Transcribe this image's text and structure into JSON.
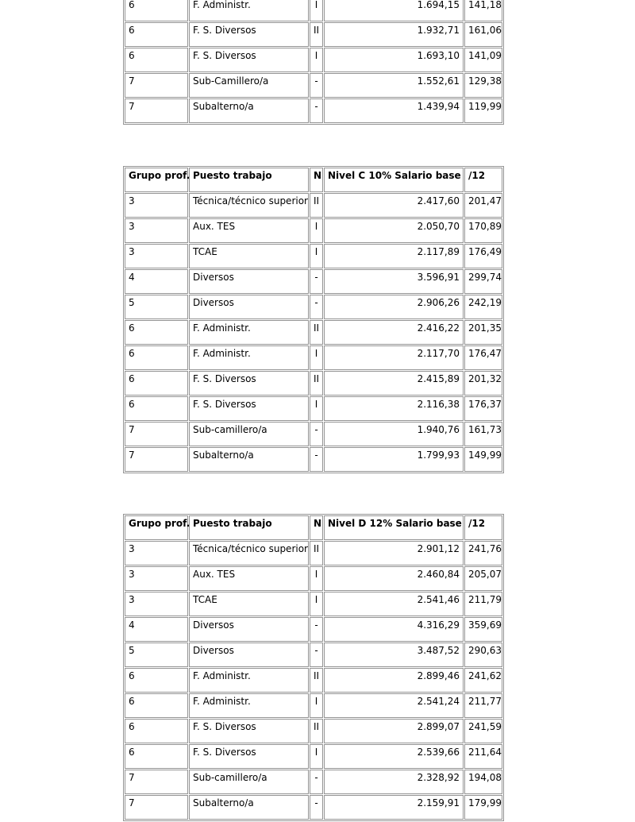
{
  "page": {
    "background_color": "#ffffff",
    "border_color": "#949494",
    "text_color": "#000000"
  },
  "tables": [
    {
      "id": "partial-top-table",
      "header": null,
      "rows": [
        [
          "6",
          "F. Administr.",
          "I",
          "1.694,15",
          "141,18"
        ],
        [
          "6",
          "F. S. Diversos",
          "II",
          "1.932,71",
          "161,06"
        ],
        [
          "6",
          "F. S. Diversos",
          "I",
          "1.693,10",
          "141,09"
        ],
        [
          "7",
          "Sub-Camillero/a",
          "-",
          "1.552,61",
          "129,38"
        ],
        [
          "7",
          "Subalterno/a",
          "-",
          "1.439,94",
          "119,99"
        ]
      ]
    },
    {
      "id": "nivel-c-table",
      "header": [
        "Grupo prof.",
        "Puesto trabajo",
        "N",
        "Nivel C 10% Salario base",
        "/12"
      ],
      "rows": [
        [
          "3",
          "Técnica/técnico superior",
          "II",
          "2.417,60",
          "201,47"
        ],
        [
          "3",
          "Aux. TES",
          "I",
          "2.050,70",
          "170,89"
        ],
        [
          "3",
          "TCAE",
          "I",
          "2.117,89",
          "176,49"
        ],
        [
          "4",
          "Diversos",
          "-",
          "3.596,91",
          "299,74"
        ],
        [
          "5",
          "Diversos",
          "-",
          "2.906,26",
          "242,19"
        ],
        [
          "6",
          "F. Administr.",
          "II",
          "2.416,22",
          "201,35"
        ],
        [
          "6",
          "F. Administr.",
          "I",
          "2.117,70",
          "176,47"
        ],
        [
          "6",
          "F. S. Diversos",
          "II",
          "2.415,89",
          "201,32"
        ],
        [
          "6",
          "F. S. Diversos",
          "I",
          "2.116,38",
          "176,37"
        ],
        [
          "7",
          "Sub-camillero/a",
          "-",
          "1.940,76",
          "161,73"
        ],
        [
          "7",
          "Subalterno/a",
          "-",
          "1.799,93",
          "149,99"
        ]
      ]
    },
    {
      "id": "nivel-d-table",
      "header": [
        "Grupo prof.",
        "Puesto trabajo",
        "N",
        "Nivel D 12% Salario base",
        "/12"
      ],
      "rows": [
        [
          "3",
          "Técnica/técnico superior",
          "II",
          "2.901,12",
          "241,76"
        ],
        [
          "3",
          "Aux. TES",
          "I",
          "2.460,84",
          "205,07"
        ],
        [
          "3",
          "TCAE",
          "I",
          "2.541,46",
          "211,79"
        ],
        [
          "4",
          "Diversos",
          "-",
          "4.316,29",
          "359,69"
        ],
        [
          "5",
          "Diversos",
          "-",
          "3.487,52",
          "290,63"
        ],
        [
          "6",
          "F. Administr.",
          "II",
          "2.899,46",
          "241,62"
        ],
        [
          "6",
          "F. Administr.",
          "I",
          "2.541,24",
          "211,77"
        ],
        [
          "6",
          "F. S. Diversos",
          "II",
          "2.899,07",
          "241,59"
        ],
        [
          "6",
          "F. S. Diversos",
          "I",
          "2.539,66",
          "211,64"
        ],
        [
          "7",
          "Sub-camillero/a",
          "-",
          "2.328,92",
          "194,08"
        ],
        [
          "7",
          "Subalterno/a",
          "-",
          "2.159,91",
          "179,99"
        ]
      ]
    }
  ]
}
